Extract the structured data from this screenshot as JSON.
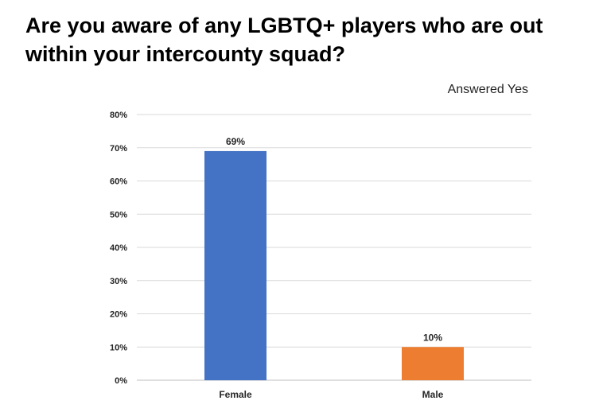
{
  "title": "Are you aware of any LGBTQ+ players who are out within your intercounty squad?",
  "chart_data": {
    "type": "bar",
    "title": "Are you aware of any LGBTQ+ players who are out within your intercounty squad?",
    "subtitle": "Answered Yes",
    "categories": [
      "Female",
      "Male"
    ],
    "values": [
      69,
      10
    ],
    "data_labels": [
      "69%",
      "10%"
    ],
    "bar_colors": [
      "#4472C4",
      "#ED7D31"
    ],
    "ylim": [
      0,
      80
    ],
    "y_ticks": [
      "0%",
      "10%",
      "20%",
      "30%",
      "40%",
      "50%",
      "60%",
      "70%",
      "80%"
    ],
    "grid": true,
    "xlabel": "",
    "ylabel": ""
  }
}
